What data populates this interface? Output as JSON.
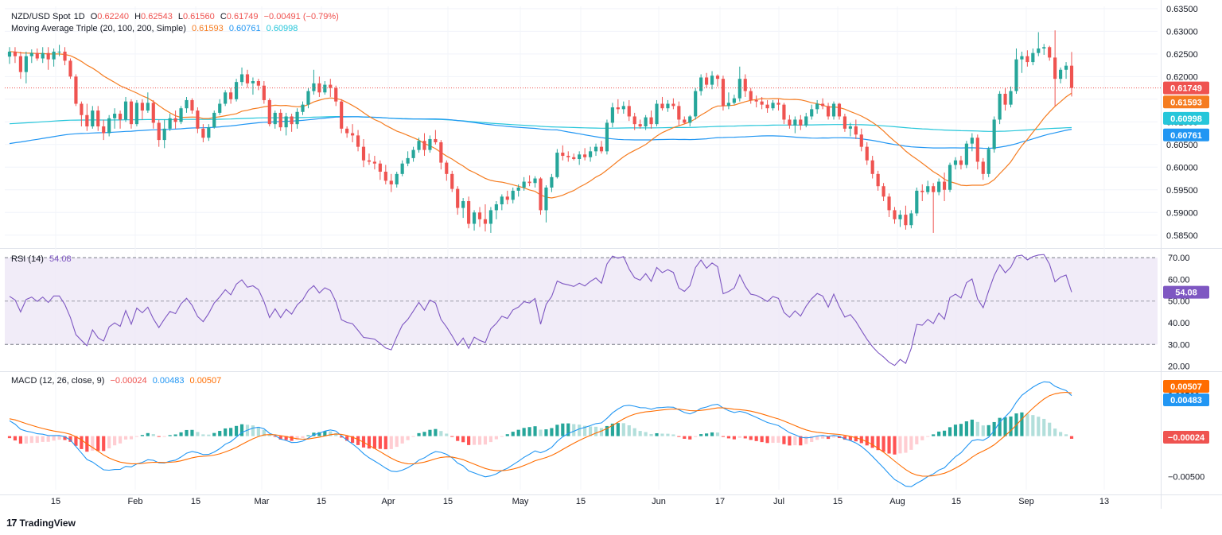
{
  "chart_data": {
    "type": "candlestick",
    "price_pane": {
      "symbol": "NZD/USD Spot",
      "interval": "1D",
      "ohlc_label": {
        "o": "O",
        "h": "H",
        "l": "L",
        "c": "C"
      },
      "open": "0.62240",
      "high": "0.62543",
      "low": "0.61560",
      "close": "0.61749",
      "change": "−0.00491 (−0.79%)",
      "ma_title": "Moving Average Triple (20, 100, 200, Simple)",
      "ma20": "0.61593",
      "ma100": "0.60761",
      "ma200": "0.60998",
      "y_ticks": [
        "0.63500",
        "0.63000",
        "0.62500",
        "0.62000",
        "0.61500",
        "0.61000",
        "0.60500",
        "0.60000",
        "0.59500",
        "0.59000",
        "0.58500"
      ],
      "ylim": [
        0.5825,
        0.6355
      ],
      "last_price_label": "0.61749",
      "ma20_label": "0.61593",
      "ma200_label": "0.60998",
      "ma100_label": "0.60761"
    },
    "rsi_pane": {
      "title": "RSI (14)",
      "value": "54.08",
      "y_ticks": [
        "70.00",
        "60.00",
        "50.00",
        "40.00",
        "30.00",
        "20.00"
      ],
      "ylim": [
        18,
        73
      ],
      "band": [
        30,
        70
      ]
    },
    "macd_pane": {
      "title": "MACD (12, 26, close, 9)",
      "hist_value": "−0.00024",
      "macd_value": "0.00483",
      "signal_value": "0.00507",
      "y_ticks": [
        "0.00500",
        "0.00000",
        "−0.00500"
      ],
      "ylim": [
        -0.0066,
        0.0077
      ]
    },
    "x_ticks": [
      "15",
      "Feb",
      "15",
      "Mar",
      "15",
      "Apr",
      "15",
      "May",
      "15",
      "Jun",
      "17",
      "Jul",
      "15",
      "Aug",
      "15",
      "Sep",
      "13"
    ],
    "colors": {
      "up": "#26a69a",
      "down": "#ef5350",
      "ma20": "#f57c20",
      "ma100": "#2196f3",
      "ma200": "#26c6da",
      "rsi": "#7e57c2",
      "macd": "#2196f3",
      "signal": "#ff6d00",
      "hist_up_strong": "#26a69a",
      "hist_up_weak": "#b2dfdb",
      "hist_down_strong": "#ff5252",
      "hist_down_weak": "#ffcdd2"
    },
    "candles": [
      [
        0.6244,
        0.6265,
        0.6228,
        0.6255
      ],
      [
        0.6255,
        0.6265,
        0.623,
        0.6245
      ],
      [
        0.6245,
        0.6255,
        0.6195,
        0.621
      ],
      [
        0.621,
        0.6255,
        0.6185,
        0.6245
      ],
      [
        0.6245,
        0.626,
        0.623,
        0.6252
      ],
      [
        0.6252,
        0.6262,
        0.6235,
        0.624
      ],
      [
        0.624,
        0.6265,
        0.623,
        0.6252
      ],
      [
        0.6252,
        0.6265,
        0.6215,
        0.6238
      ],
      [
        0.6238,
        0.6262,
        0.6222,
        0.6255
      ],
      [
        0.6255,
        0.627,
        0.6245,
        0.6255
      ],
      [
        0.6255,
        0.6265,
        0.6225,
        0.6235
      ],
      [
        0.6235,
        0.624,
        0.6195,
        0.62
      ],
      [
        0.62,
        0.6205,
        0.6135,
        0.614
      ],
      [
        0.614,
        0.6145,
        0.609,
        0.6115
      ],
      [
        0.6115,
        0.614,
        0.608,
        0.609
      ],
      [
        0.609,
        0.6135,
        0.6085,
        0.6125
      ],
      [
        0.6125,
        0.6135,
        0.608,
        0.609
      ],
      [
        0.609,
        0.6105,
        0.606,
        0.6075
      ],
      [
        0.6075,
        0.6115,
        0.6068,
        0.6108
      ],
      [
        0.6108,
        0.613,
        0.6085,
        0.6118
      ],
      [
        0.6118,
        0.6125,
        0.6085,
        0.6105
      ],
      [
        0.6105,
        0.6155,
        0.61,
        0.6145
      ],
      [
        0.6145,
        0.615,
        0.6085,
        0.6095
      ],
      [
        0.6095,
        0.6148,
        0.609,
        0.6142
      ],
      [
        0.6142,
        0.615,
        0.6105,
        0.6125
      ],
      [
        0.6125,
        0.6165,
        0.612,
        0.6142
      ],
      [
        0.6142,
        0.6148,
        0.6085,
        0.6098
      ],
      [
        0.6098,
        0.6105,
        0.6045,
        0.606
      ],
      [
        0.606,
        0.6105,
        0.6042,
        0.6085
      ],
      [
        0.6085,
        0.6118,
        0.608,
        0.6108
      ],
      [
        0.6108,
        0.6125,
        0.6085,
        0.61
      ],
      [
        0.61,
        0.6135,
        0.6095,
        0.613
      ],
      [
        0.613,
        0.6155,
        0.612,
        0.6148
      ],
      [
        0.6148,
        0.6152,
        0.6118,
        0.6125
      ],
      [
        0.6125,
        0.6132,
        0.6075,
        0.6085
      ],
      [
        0.6085,
        0.6095,
        0.6055,
        0.6065
      ],
      [
        0.6065,
        0.6095,
        0.6058,
        0.6088
      ],
      [
        0.6088,
        0.6125,
        0.6085,
        0.612
      ],
      [
        0.612,
        0.615,
        0.6115,
        0.614
      ],
      [
        0.614,
        0.617,
        0.6135,
        0.6165
      ],
      [
        0.6165,
        0.6175,
        0.614,
        0.615
      ],
      [
        0.615,
        0.6195,
        0.6145,
        0.6188
      ],
      [
        0.6188,
        0.622,
        0.618,
        0.6205
      ],
      [
        0.6205,
        0.6215,
        0.6175,
        0.6185
      ],
      [
        0.6185,
        0.6198,
        0.616,
        0.619
      ],
      [
        0.619,
        0.6195,
        0.617,
        0.618
      ],
      [
        0.618,
        0.619,
        0.614,
        0.6148
      ],
      [
        0.6148,
        0.6152,
        0.609,
        0.6095
      ],
      [
        0.6095,
        0.6125,
        0.6085,
        0.612
      ],
      [
        0.612,
        0.6128,
        0.608,
        0.6088
      ],
      [
        0.6088,
        0.612,
        0.607,
        0.6112
      ],
      [
        0.6112,
        0.6118,
        0.6078,
        0.6095
      ],
      [
        0.6095,
        0.613,
        0.6085,
        0.6122
      ],
      [
        0.6122,
        0.6145,
        0.6115,
        0.6138
      ],
      [
        0.6138,
        0.6175,
        0.613,
        0.6168
      ],
      [
        0.6168,
        0.6215,
        0.616,
        0.6185
      ],
      [
        0.6185,
        0.62,
        0.6155,
        0.6165
      ],
      [
        0.6165,
        0.619,
        0.616,
        0.6182
      ],
      [
        0.6182,
        0.6195,
        0.6155,
        0.6175
      ],
      [
        0.6175,
        0.618,
        0.6135,
        0.6145
      ],
      [
        0.6145,
        0.615,
        0.6075,
        0.6085
      ],
      [
        0.6085,
        0.609,
        0.6065,
        0.6075
      ],
      [
        0.6075,
        0.6095,
        0.6055,
        0.607
      ],
      [
        0.607,
        0.6082,
        0.6035,
        0.6045
      ],
      [
        0.6045,
        0.6062,
        0.6,
        0.6015
      ],
      [
        0.6015,
        0.603,
        0.6005,
        0.6012
      ],
      [
        0.6012,
        0.6025,
        0.5995,
        0.6008
      ],
      [
        0.6008,
        0.6015,
        0.5972,
        0.599
      ],
      [
        0.599,
        0.6005,
        0.5962,
        0.597
      ],
      [
        0.597,
        0.5985,
        0.5945,
        0.5962
      ],
      [
        0.5962,
        0.599,
        0.5955,
        0.5985
      ],
      [
        0.5985,
        0.6015,
        0.598,
        0.6008
      ],
      [
        0.6008,
        0.6035,
        0.6002,
        0.602
      ],
      [
        0.602,
        0.6045,
        0.6012,
        0.6038
      ],
      [
        0.6038,
        0.6065,
        0.6032,
        0.6058
      ],
      [
        0.6058,
        0.6075,
        0.6025,
        0.6038
      ],
      [
        0.6038,
        0.607,
        0.6032,
        0.6062
      ],
      [
        0.6062,
        0.6082,
        0.605,
        0.6055
      ],
      [
        0.6055,
        0.606,
        0.5995,
        0.601
      ],
      [
        0.601,
        0.6015,
        0.597,
        0.5985
      ],
      [
        0.5985,
        0.5992,
        0.5945,
        0.5952
      ],
      [
        0.5952,
        0.5958,
        0.5895,
        0.591
      ],
      [
        0.591,
        0.5932,
        0.5888,
        0.5925
      ],
      [
        0.5925,
        0.5935,
        0.5865,
        0.5875
      ],
      [
        0.5875,
        0.5905,
        0.586,
        0.59
      ],
      [
        0.59,
        0.5912,
        0.5868,
        0.5885
      ],
      [
        0.5885,
        0.5918,
        0.5858,
        0.5875
      ],
      [
        0.5875,
        0.5912,
        0.5855,
        0.5905
      ],
      [
        0.5905,
        0.5925,
        0.5885,
        0.5918
      ],
      [
        0.5918,
        0.594,
        0.5905,
        0.5935
      ],
      [
        0.5935,
        0.5948,
        0.5918,
        0.5928
      ],
      [
        0.5928,
        0.5955,
        0.592,
        0.5948
      ],
      [
        0.5948,
        0.5962,
        0.5935,
        0.5955
      ],
      [
        0.5955,
        0.5978,
        0.5948,
        0.5968
      ],
      [
        0.5968,
        0.5982,
        0.5958,
        0.5965
      ],
      [
        0.5965,
        0.598,
        0.5955,
        0.5975
      ],
      [
        0.5975,
        0.5978,
        0.5895,
        0.5905
      ],
      [
        0.5905,
        0.596,
        0.5878,
        0.5955
      ],
      [
        0.5955,
        0.5985,
        0.5945,
        0.5978
      ],
      [
        0.5978,
        0.604,
        0.5975,
        0.6032
      ],
      [
        0.6032,
        0.6048,
        0.6015,
        0.6025
      ],
      [
        0.6025,
        0.6035,
        0.6012,
        0.6022
      ],
      [
        0.6022,
        0.603,
        0.6015,
        0.6018
      ],
      [
        0.6018,
        0.6035,
        0.6005,
        0.6028
      ],
      [
        0.6028,
        0.6042,
        0.6015,
        0.6022
      ],
      [
        0.6022,
        0.6045,
        0.6012,
        0.6035
      ],
      [
        0.6035,
        0.6052,
        0.6025,
        0.6045
      ],
      [
        0.6045,
        0.6058,
        0.603,
        0.6035
      ],
      [
        0.6035,
        0.6105,
        0.6028,
        0.6098
      ],
      [
        0.6098,
        0.6142,
        0.6088,
        0.6132
      ],
      [
        0.6132,
        0.615,
        0.6118,
        0.6128
      ],
      [
        0.6128,
        0.6145,
        0.6118,
        0.6135
      ],
      [
        0.6135,
        0.6148,
        0.6102,
        0.6112
      ],
      [
        0.6112,
        0.612,
        0.6082,
        0.6095
      ],
      [
        0.6095,
        0.6105,
        0.6085,
        0.609
      ],
      [
        0.609,
        0.6115,
        0.6082,
        0.611
      ],
      [
        0.611,
        0.6125,
        0.6085,
        0.6095
      ],
      [
        0.6095,
        0.6148,
        0.609,
        0.614
      ],
      [
        0.614,
        0.6155,
        0.6125,
        0.613
      ],
      [
        0.613,
        0.6148,
        0.6122,
        0.614
      ],
      [
        0.614,
        0.6152,
        0.6128,
        0.6135
      ],
      [
        0.6135,
        0.6145,
        0.6092,
        0.6105
      ],
      [
        0.6105,
        0.6112,
        0.6095,
        0.6098
      ],
      [
        0.6098,
        0.6115,
        0.609,
        0.6112
      ],
      [
        0.6112,
        0.6175,
        0.6105,
        0.6168
      ],
      [
        0.6168,
        0.6205,
        0.6158,
        0.6198
      ],
      [
        0.6198,
        0.6208,
        0.6175,
        0.6182
      ],
      [
        0.6182,
        0.6212,
        0.6172,
        0.6202
      ],
      [
        0.6202,
        0.6205,
        0.6178,
        0.6195
      ],
      [
        0.6195,
        0.6202,
        0.6125,
        0.6135
      ],
      [
        0.6135,
        0.6165,
        0.6128,
        0.6142
      ],
      [
        0.6142,
        0.616,
        0.6138,
        0.6152
      ],
      [
        0.6152,
        0.6222,
        0.6145,
        0.6195
      ],
      [
        0.6195,
        0.6205,
        0.6155,
        0.6168
      ],
      [
        0.6168,
        0.6175,
        0.614,
        0.6148
      ],
      [
        0.6148,
        0.6158,
        0.6132,
        0.6145
      ],
      [
        0.6145,
        0.6155,
        0.6128,
        0.6138
      ],
      [
        0.6138,
        0.6148,
        0.612,
        0.613
      ],
      [
        0.613,
        0.6148,
        0.6125,
        0.6142
      ],
      [
        0.6142,
        0.615,
        0.6125,
        0.6138
      ],
      [
        0.6138,
        0.6142,
        0.6095,
        0.6105
      ],
      [
        0.6105,
        0.6115,
        0.6085,
        0.6092
      ],
      [
        0.6092,
        0.6112,
        0.6075,
        0.6105
      ],
      [
        0.6105,
        0.6115,
        0.6082,
        0.6092
      ],
      [
        0.6092,
        0.612,
        0.6088,
        0.6112
      ],
      [
        0.6112,
        0.6138,
        0.6105,
        0.6128
      ],
      [
        0.6128,
        0.6148,
        0.6118,
        0.614
      ],
      [
        0.614,
        0.6152,
        0.6128,
        0.6135
      ],
      [
        0.6135,
        0.6142,
        0.6105,
        0.6112
      ],
      [
        0.6112,
        0.6145,
        0.6105,
        0.614
      ],
      [
        0.614,
        0.6142,
        0.6105,
        0.6112
      ],
      [
        0.6112,
        0.6118,
        0.6078,
        0.6085
      ],
      [
        0.6085,
        0.6098,
        0.6068,
        0.609
      ],
      [
        0.609,
        0.6105,
        0.6062,
        0.6072
      ],
      [
        0.6072,
        0.6085,
        0.6035,
        0.6045
      ],
      [
        0.6045,
        0.6055,
        0.6005,
        0.6015
      ],
      [
        0.6015,
        0.6025,
        0.5975,
        0.5985
      ],
      [
        0.5985,
        0.5992,
        0.5948,
        0.5958
      ],
      [
        0.5958,
        0.5965,
        0.5925,
        0.5935
      ],
      [
        0.5935,
        0.5942,
        0.589,
        0.5905
      ],
      [
        0.5905,
        0.5912,
        0.5875,
        0.5885
      ],
      [
        0.5885,
        0.5905,
        0.5868,
        0.5895
      ],
      [
        0.5895,
        0.5915,
        0.5862,
        0.5872
      ],
      [
        0.5872,
        0.5905,
        0.5865,
        0.5898
      ],
      [
        0.5898,
        0.5955,
        0.5892,
        0.5948
      ],
      [
        0.5948,
        0.5962,
        0.5925,
        0.5945
      ],
      [
        0.5945,
        0.597,
        0.594,
        0.5958
      ],
      [
        0.5958,
        0.5965,
        0.5855,
        0.5945
      ],
      [
        0.5945,
        0.5975,
        0.5938,
        0.5968
      ],
      [
        0.5968,
        0.5988,
        0.5925,
        0.595
      ],
      [
        0.595,
        0.601,
        0.5945,
        0.6005
      ],
      [
        0.6005,
        0.6022,
        0.5995,
        0.6015
      ],
      [
        0.6015,
        0.6025,
        0.5995,
        0.6005
      ],
      [
        0.6005,
        0.6058,
        0.5998,
        0.6052
      ],
      [
        0.6052,
        0.6075,
        0.6035,
        0.6065
      ],
      [
        0.6065,
        0.6072,
        0.5995,
        0.6012
      ],
      [
        0.6012,
        0.602,
        0.5972,
        0.5985
      ],
      [
        0.5985,
        0.6045,
        0.5978,
        0.604
      ],
      [
        0.604,
        0.6112,
        0.6032,
        0.6105
      ],
      [
        0.6105,
        0.6168,
        0.6095,
        0.6162
      ],
      [
        0.6162,
        0.6175,
        0.6125,
        0.6138
      ],
      [
        0.6138,
        0.6178,
        0.6132,
        0.6168
      ],
      [
        0.6168,
        0.6262,
        0.6162,
        0.6238
      ],
      [
        0.6238,
        0.6255,
        0.6208,
        0.6245
      ],
      [
        0.6245,
        0.6258,
        0.6222,
        0.6232
      ],
      [
        0.6232,
        0.6262,
        0.6225,
        0.6252
      ],
      [
        0.6252,
        0.6298,
        0.6245,
        0.6262
      ],
      [
        0.6262,
        0.6272,
        0.6248,
        0.6265
      ],
      [
        0.6265,
        0.6268,
        0.6235,
        0.6242
      ],
      [
        0.6242,
        0.6302,
        0.6135,
        0.6195
      ],
      [
        0.6195,
        0.622,
        0.6185,
        0.6215
      ],
      [
        0.6215,
        0.6232,
        0.6195,
        0.6224
      ],
      [
        0.6224,
        0.62543,
        0.6156,
        0.61749
      ]
    ]
  },
  "footer": {
    "brand": "TradingView",
    "mark": "17"
  }
}
